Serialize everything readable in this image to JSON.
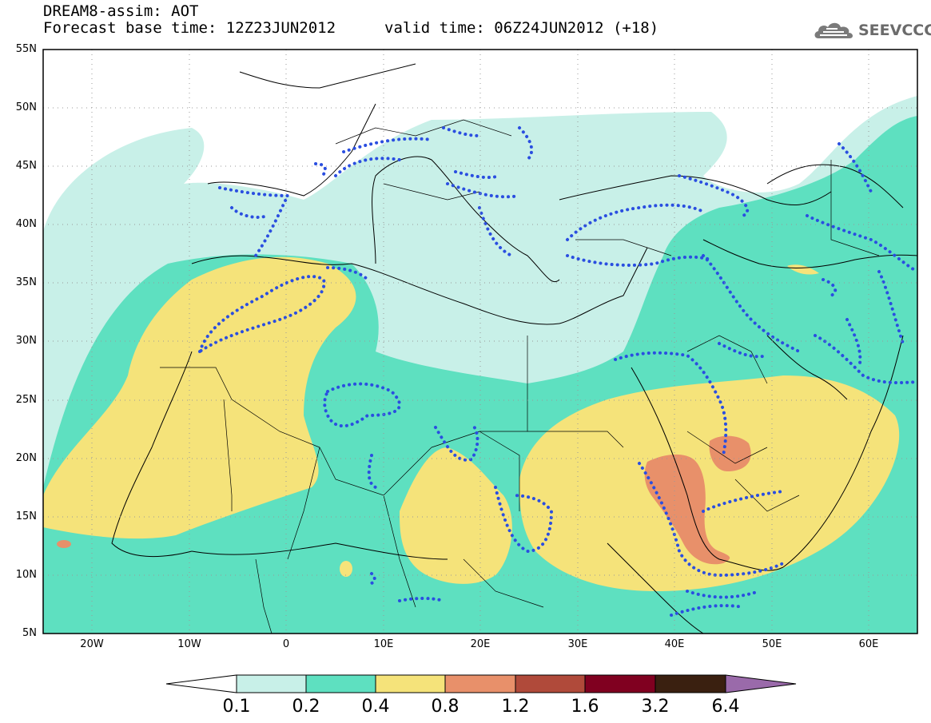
{
  "header": {
    "title_line1": "DREAM8-assim: AOT",
    "title_line2": "Forecast base time: 12Z23JUN2012",
    "valid_time": "valid time: 06Z24JUN2012 (+18)"
  },
  "logo": {
    "text": "SEEVCCC",
    "icon": "cloud-icon"
  },
  "map": {
    "lon_range": [
      -25,
      65
    ],
    "lat_range": [
      5,
      55
    ],
    "lat_labels": [
      "55N",
      "50N",
      "45N",
      "40N",
      "35N",
      "30N",
      "25N",
      "20N",
      "15N",
      "10N",
      "5N"
    ],
    "lon_labels": [
      "20W",
      "10W",
      "0",
      "10E",
      "20E",
      "30E",
      "40E",
      "50E",
      "60E"
    ],
    "grid": "dotted",
    "contour_style": "blue dotted"
  },
  "colorbar": {
    "levels": [
      "0.1",
      "0.2",
      "0.4",
      "0.8",
      "1.2",
      "1.6",
      "3.2",
      "6.4"
    ],
    "colors": [
      "#ffffff",
      "#c8f0e8",
      "#5ee0c0",
      "#f5e37a",
      "#e8906a",
      "#b04a3a",
      "#800020",
      "#3a2010",
      "#9a6aaa"
    ]
  }
}
